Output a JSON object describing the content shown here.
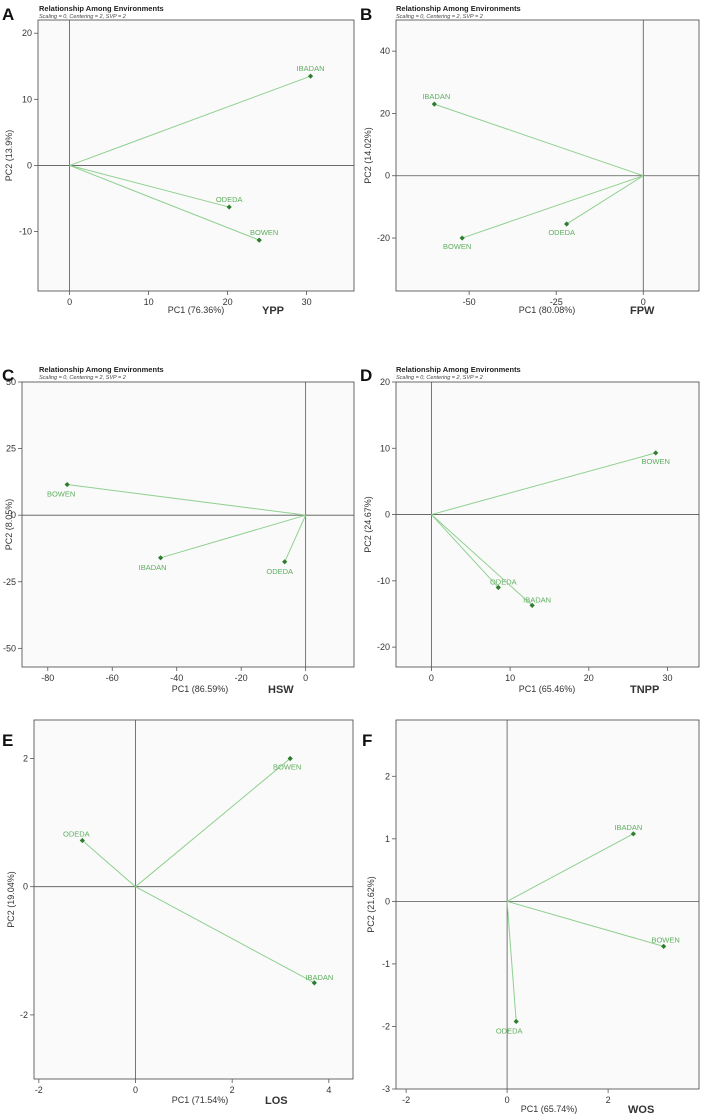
{
  "chart_data": [
    {
      "panel": "A",
      "type": "scatter",
      "title": "Relationship Among Environments",
      "subtitle": "Scaling = 0, Centering = 2, SVP = 2",
      "xlabel": "PC1 (76.36%)",
      "ylabel": "PC2 (13.9%)",
      "trait": "YPP",
      "xlim": [
        -4,
        36
      ],
      "ylim": [
        -19,
        22
      ],
      "xticks": [
        0,
        10,
        20,
        30
      ],
      "yticks": [
        -10,
        0,
        10,
        20
      ],
      "points": [
        {
          "label": "IBADAN",
          "x": 30.5,
          "y": 13.5
        },
        {
          "label": "ODEDA",
          "x": 20.2,
          "y": -6.3
        },
        {
          "label": "BOWEN",
          "x": 24,
          "y": -11.3
        }
      ]
    },
    {
      "panel": "B",
      "type": "scatter",
      "title": "Relationship Among Environments",
      "subtitle": "Scaling = 0, Centering = 2, SVP = 2",
      "xlabel": "PC1 (80.08%)",
      "ylabel": "PC2 (14.02%)",
      "trait": "FPW",
      "xlim": [
        -71,
        16
      ],
      "ylim": [
        -37,
        50
      ],
      "xticks": [
        -50,
        -25,
        0
      ],
      "yticks": [
        -20,
        0,
        20,
        40
      ],
      "points": [
        {
          "label": "IBADAN",
          "x": -60,
          "y": 23
        },
        {
          "label": "BOWEN",
          "x": -52,
          "y": -20
        },
        {
          "label": "ODEDA",
          "x": -22,
          "y": -15.5
        }
      ]
    },
    {
      "panel": "C",
      "type": "scatter",
      "title": "Relationship Among Environments",
      "subtitle": "Scaling = 0, Centering = 2, SVP = 2",
      "xlabel": "PC1 (86.59%)",
      "ylabel": "PC2 (8.05%)",
      "trait": "HSW",
      "xlim": [
        -88,
        15
      ],
      "ylim": [
        -57,
        50
      ],
      "xticks": [
        -80,
        -60,
        -40,
        -20,
        0
      ],
      "yticks": [
        -50,
        -25,
        0,
        25,
        50
      ],
      "points": [
        {
          "label": "BOWEN",
          "x": -74,
          "y": 11.5
        },
        {
          "label": "IBADAN",
          "x": -45,
          "y": -16
        },
        {
          "label": "ODEDA",
          "x": -6.5,
          "y": -17.5
        }
      ]
    },
    {
      "panel": "D",
      "type": "scatter",
      "title": "Relationship Among Environments",
      "subtitle": "Scaling = 0, Centering = 2, SVP = 2",
      "xlabel": "PC1 (65.46%)",
      "ylabel": "PC2 (24.67%)",
      "trait": "TNPP",
      "xlim": [
        -4.5,
        34
      ],
      "ylim": [
        -23,
        20
      ],
      "xticks": [
        0,
        10,
        20,
        30
      ],
      "yticks": [
        -20,
        -10,
        0,
        10,
        20
      ],
      "points": [
        {
          "label": "BOWEN",
          "x": 28.5,
          "y": 9.3
        },
        {
          "label": "ODEDA",
          "x": 8.5,
          "y": -11
        },
        {
          "label": "IBADAN",
          "x": 12.8,
          "y": -13.7
        }
      ]
    },
    {
      "panel": "E",
      "type": "scatter",
      "title": "Relationship Among Environments",
      "subtitle": "Scaling = 0, Centering = 2, SVP = 2",
      "xlabel": "PC1 (71.54%)",
      "ylabel": "PC2 (19.04%)",
      "trait": "LOS",
      "xlim": [
        -2.1,
        4.5
      ],
      "ylim": [
        -3,
        2.6
      ],
      "xticks": [
        -2,
        0,
        2,
        4
      ],
      "yticks": [
        -2,
        0,
        2
      ],
      "points": [
        {
          "label": "BOWEN",
          "x": 3.2,
          "y": 2
        },
        {
          "label": "ODEDA",
          "x": -1.1,
          "y": 0.72
        },
        {
          "label": "IBADAN",
          "x": 3.7,
          "y": -1.5
        }
      ]
    },
    {
      "panel": "F",
      "type": "scatter",
      "title": "Relationship Among Environments",
      "subtitle": "Scaling = 0, Centering = 2, SVP = 2",
      "xlabel": "PC1 (65.74%)",
      "ylabel": "PC2 (21.62%)",
      "trait": "WOS",
      "xlim": [
        -2.2,
        3.8
      ],
      "ylim": [
        -3,
        2.9
      ],
      "xticks": [
        -2,
        0,
        2
      ],
      "yticks": [
        -3,
        -2,
        -1,
        0,
        1,
        2
      ],
      "points": [
        {
          "label": "IBADAN",
          "x": 2.5,
          "y": 1.08
        },
        {
          "label": "BOWEN",
          "x": 3.1,
          "y": -0.72
        },
        {
          "label": "ODEDA",
          "x": 0.18,
          "y": -1.92
        }
      ]
    }
  ],
  "colors": {
    "line": "#8fd08f",
    "marker": "#2e7d2e",
    "label": "#5fae5f",
    "axis": "#555555",
    "frame": "#444444",
    "plot_bg": "#fafafa"
  }
}
